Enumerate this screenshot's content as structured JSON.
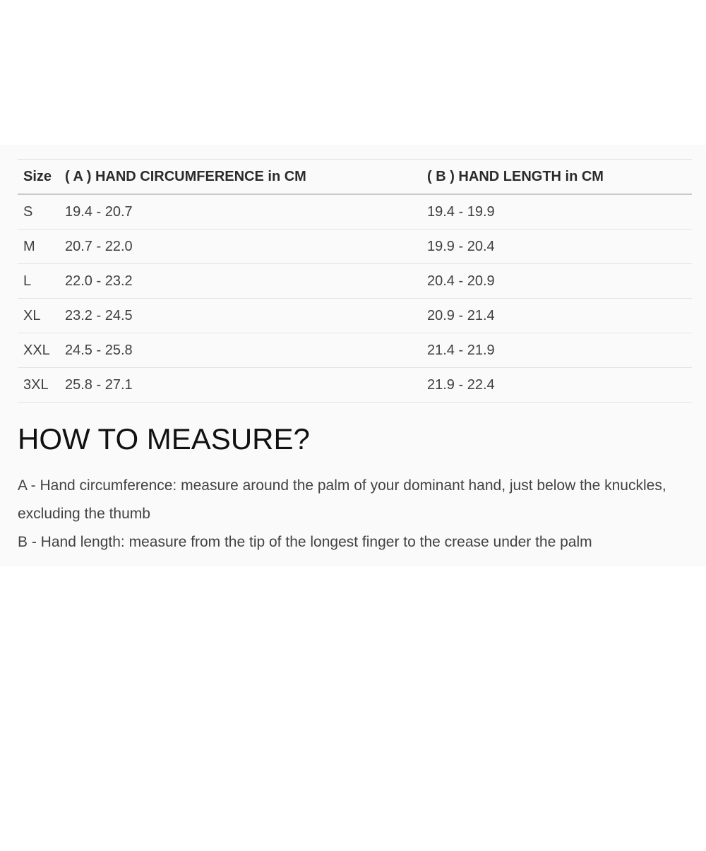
{
  "size_chart": {
    "columns": {
      "size": "Size",
      "hand_circumference": "( A ) HAND CIRCUMFERENCE in CM",
      "hand_length": "( B ) HAND LENGTH in CM"
    },
    "rows": [
      {
        "size": "S",
        "hand_circumference": "19.4 - 20.7",
        "hand_length": "19.4 - 19.9"
      },
      {
        "size": "M",
        "hand_circumference": "20.7 - 22.0",
        "hand_length": "19.9 - 20.4"
      },
      {
        "size": "L",
        "hand_circumference": "22.0 - 23.2",
        "hand_length": "20.4 - 20.9"
      },
      {
        "size": "XL",
        "hand_circumference": "23.2 - 24.5",
        "hand_length": "20.9 - 21.4"
      },
      {
        "size": "XXL",
        "hand_circumference": "24.5 - 25.8",
        "hand_length": "21.4 - 21.9"
      },
      {
        "size": "3XL",
        "hand_circumference": "25.8 - 27.1",
        "hand_length": "21.9 - 22.4"
      }
    ]
  },
  "how_to_measure": {
    "heading": "HOW TO MEASURE?",
    "instructions": [
      "A - Hand circumference: measure around the palm of your dominant hand, just below the knuckles, excluding the thumb",
      "B - Hand length: measure from the tip of the longest finger to the crease under the palm"
    ]
  },
  "colors": {
    "page_background": "#ffffff",
    "section_background": "#fafafa",
    "row_border": "#e3e3e3",
    "header_border": "#c9c9c9",
    "header_text": "#2b2b2b",
    "body_text": "#424242"
  }
}
